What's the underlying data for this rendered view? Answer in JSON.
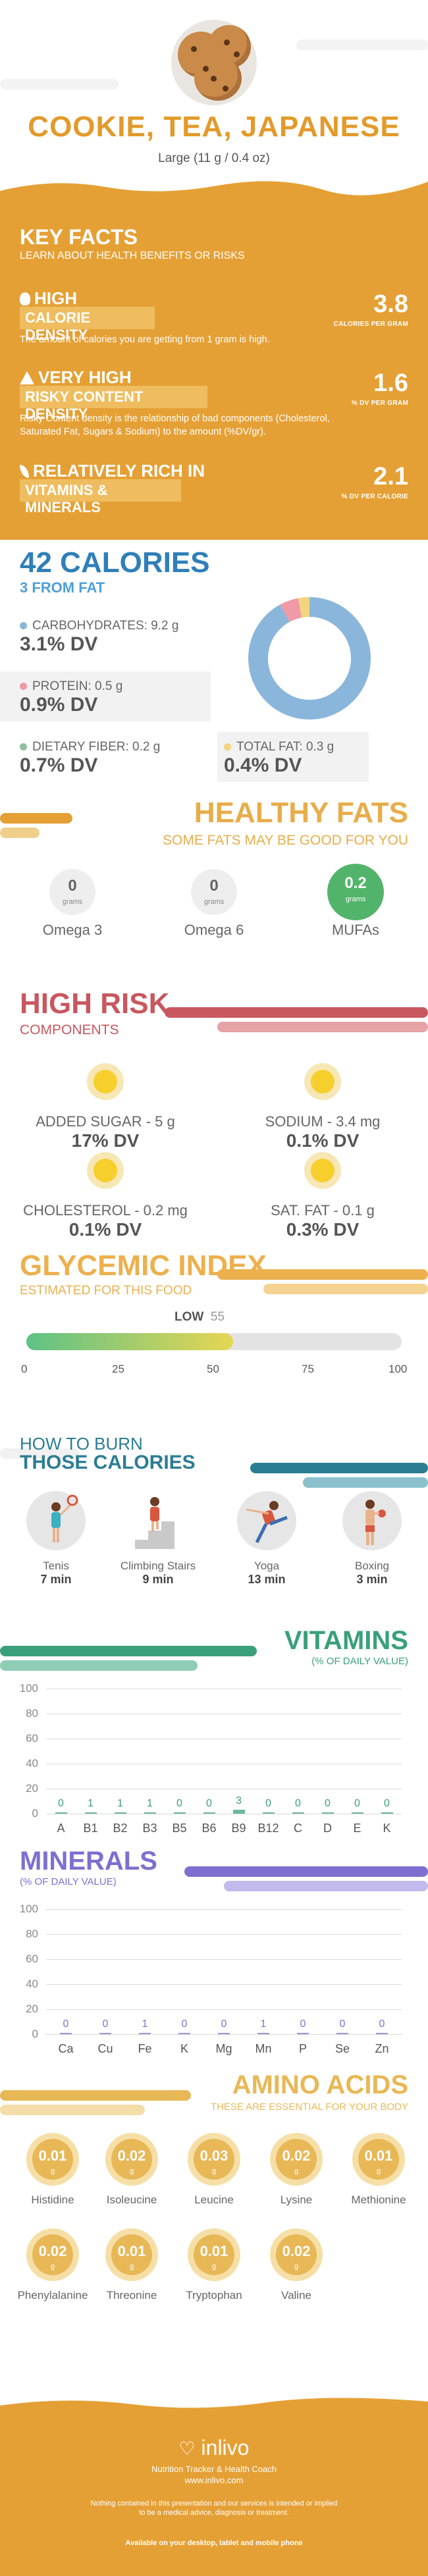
{
  "header": {
    "title": "COOKIE, TEA, JAPANESE",
    "serving": "Large (11 g / 0.4 oz)"
  },
  "key_facts": {
    "title": "KEY FACTS",
    "subtitle": "LEARN ABOUT HEALTH BENEFITS OR RISKS",
    "items": [
      {
        "level": "HIGH",
        "label": "CALORIE DENSITY",
        "icon": "flame-icon",
        "value": "3.8",
        "unit": "CALORIES PER GRAM",
        "description": "The amount of calories you are getting from 1 gram is high."
      },
      {
        "level": "VERY HIGH",
        "label": "RISKY CONTENT DENSITY",
        "icon": "warning-icon",
        "value": "1.6",
        "unit": "% DV PER GRAM",
        "description": "Risky Content density is the relationship of bad components (Cholesterol, Saturated Fat, Sugars & Sodium) to the amount (%DV/gr)."
      },
      {
        "level": "RELATIVELY RICH IN",
        "label": "VITAMINS & MINERALS",
        "icon": "leaf-icon",
        "value": "2.1",
        "unit": "% DV PER CALORIE",
        "description": ""
      }
    ]
  },
  "calories": {
    "title": "42 CALORIES",
    "subtitle": "3 FROM FAT",
    "nutrients": [
      {
        "label": "CARBOHYDRATES: 9.2 g",
        "dv": "3.1% DV",
        "color": "#8ab6dc"
      },
      {
        "label": "PROTEIN: 0.5 g",
        "dv": "0.9% DV",
        "color": "#ef9aa6"
      },
      {
        "label": "DIETARY FIBER: 0.2 g",
        "dv": "0.7% DV",
        "color": "#8dbfa0"
      },
      {
        "label": "TOTAL FAT: 0.3 g",
        "dv": "0.4% DV",
        "color": "#f4d47c"
      }
    ],
    "donut": [
      {
        "name": "carbohydrates",
        "value": 9.2,
        "color": "#8ab6dc"
      },
      {
        "name": "protein",
        "value": 0.5,
        "color": "#ef9aa6"
      },
      {
        "name": "fat",
        "value": 0.3,
        "color": "#f4d47c"
      }
    ]
  },
  "healthy_fats": {
    "title": "HEALTHY FATS",
    "subtitle": "SOME FATS MAY BE GOOD FOR YOU",
    "items": [
      {
        "name": "Omega 3",
        "value": "0",
        "unit": "grams",
        "color": "#eeeeee",
        "text": "#666666"
      },
      {
        "name": "Omega 6",
        "value": "0",
        "unit": "grams",
        "color": "#eeeeee",
        "text": "#666666"
      },
      {
        "name": "MUFAs",
        "value": "0.2",
        "unit": "grams",
        "color": "#52b46a",
        "text": "#ffffff"
      }
    ]
  },
  "high_risk": {
    "title": "HIGH RISK",
    "subtitle": "COMPONENTS",
    "items": [
      {
        "label": "ADDED SUGAR - 5 g",
        "dv": "17% DV",
        "icon": "smile-icon"
      },
      {
        "label": "SODIUM - 3.4 mg",
        "dv": "0.1% DV",
        "icon": "grin-icon"
      },
      {
        "label": "CHOLESTEROL - 0.2 mg",
        "dv": "0.1% DV",
        "icon": "grin-icon"
      },
      {
        "label": "SAT. FAT - 0.1 g",
        "dv": "0.3% DV",
        "icon": "grin-icon"
      }
    ]
  },
  "glycemic": {
    "title": "GLYCEMIC INDEX",
    "subtitle": "ESTIMATED FOR THIS FOOD",
    "level": "LOW",
    "value": "55",
    "value_num": 55,
    "ticks": [
      "0",
      "25",
      "50",
      "75",
      "100"
    ]
  },
  "burn": {
    "title_1": "HOW TO BURN",
    "title_2": "THOSE CALORIES",
    "items": [
      {
        "name": "Tenis",
        "time": "7 min",
        "icon": "tennis-player-icon"
      },
      {
        "name": "Climbing Stairs",
        "time": "9 min",
        "icon": "stairs-climber-icon"
      },
      {
        "name": "Yoga",
        "time": "13 min",
        "icon": "yoga-pose-icon"
      },
      {
        "name": "Boxing",
        "time": "3 min",
        "icon": "boxer-icon"
      }
    ]
  },
  "vitamins": {
    "title": "VITAMINS",
    "subtitle": "(% OF DAILY VALUE)",
    "y_ticks": [
      "100",
      "80",
      "60",
      "40",
      "20",
      "0"
    ],
    "categories": [
      "A",
      "B1",
      "B2",
      "B3",
      "B5",
      "B6",
      "B9",
      "B12",
      "C",
      "D",
      "E",
      "K"
    ],
    "value_labels": [
      "0",
      "1",
      "1",
      "1",
      "0",
      "0",
      "3",
      "0",
      "0",
      "0",
      "0",
      "0"
    ],
    "color": "#3aa07a"
  },
  "minerals": {
    "title": "MINERALS",
    "subtitle": "(% OF DAILY VALUE)",
    "y_ticks": [
      "100",
      "80",
      "60",
      "40",
      "20",
      "0"
    ],
    "categories": [
      "Ca",
      "Cu",
      "Fe",
      "K",
      "Mg",
      "Mn",
      "P",
      "Se",
      "Zn"
    ],
    "value_labels": [
      "0",
      "0",
      "1",
      "0",
      "0",
      "1",
      "0",
      "0",
      "0"
    ],
    "color": "#7f6fd0"
  },
  "chart_data": [
    {
      "type": "bar",
      "title": "VITAMINS",
      "ylabel": "(% OF DAILY VALUE)",
      "categories": [
        "A",
        "B1",
        "B2",
        "B3",
        "B5",
        "B6",
        "B9",
        "B12",
        "C",
        "D",
        "E",
        "K"
      ],
      "values": [
        0,
        1,
        1,
        1,
        0,
        0,
        3,
        0,
        0,
        0,
        0,
        0
      ],
      "ylim": [
        0,
        100
      ]
    },
    {
      "type": "bar",
      "title": "MINERALS",
      "ylabel": "(% OF DAILY VALUE)",
      "categories": [
        "Ca",
        "Cu",
        "Fe",
        "K",
        "Mg",
        "Mn",
        "P",
        "Se",
        "Zn"
      ],
      "values": [
        0,
        0,
        1,
        0,
        0,
        1,
        0,
        0,
        0
      ],
      "ylim": [
        0,
        100
      ]
    }
  ],
  "amino": {
    "title": "AMINO ACIDS",
    "subtitle": "THESE ARE ESSENTIAL FOR YOUR BODY",
    "unit": "g",
    "items": [
      {
        "name": "Histidine",
        "value": "0.01"
      },
      {
        "name": "Isoleucine",
        "value": "0.02"
      },
      {
        "name": "Leucine",
        "value": "0.03"
      },
      {
        "name": "Lysine",
        "value": "0.02"
      },
      {
        "name": "Methionine",
        "value": "0.01"
      },
      {
        "name": "Phenylalanine",
        "value": "0.02"
      },
      {
        "name": "Threonine",
        "value": "0.01"
      },
      {
        "name": "Tryptophan",
        "value": "0.01"
      },
      {
        "name": "Valine",
        "value": "0.02"
      }
    ]
  },
  "footer": {
    "brand": "inlivo",
    "tagline": "Nutrition Tracker & Health Coach",
    "url": "www.inlivo.com",
    "disclaimer_1": "Nothing contained in this presentation and our services is intended or implied",
    "disclaimer_2": "to be a medical advice, diagnosis or treatment.",
    "available": "Available on your desktop, tablet and mobile phone"
  }
}
